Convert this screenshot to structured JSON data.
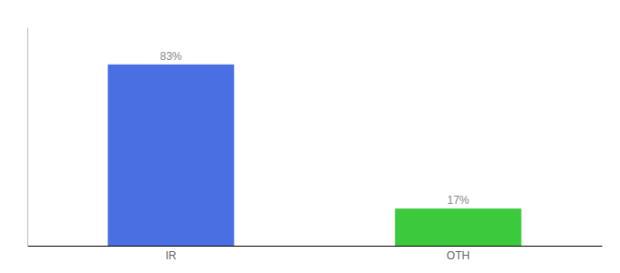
{
  "chart_data": {
    "type": "bar",
    "categories": [
      "IR",
      "OTH"
    ],
    "values": [
      83,
      17
    ],
    "value_labels": [
      "83%",
      "17%"
    ],
    "colors": [
      "#4a6fe3",
      "#3dc93d"
    ],
    "ylim": [
      0,
      100
    ],
    "data_labels": true,
    "tick_labels": "x",
    "grid": false
  }
}
